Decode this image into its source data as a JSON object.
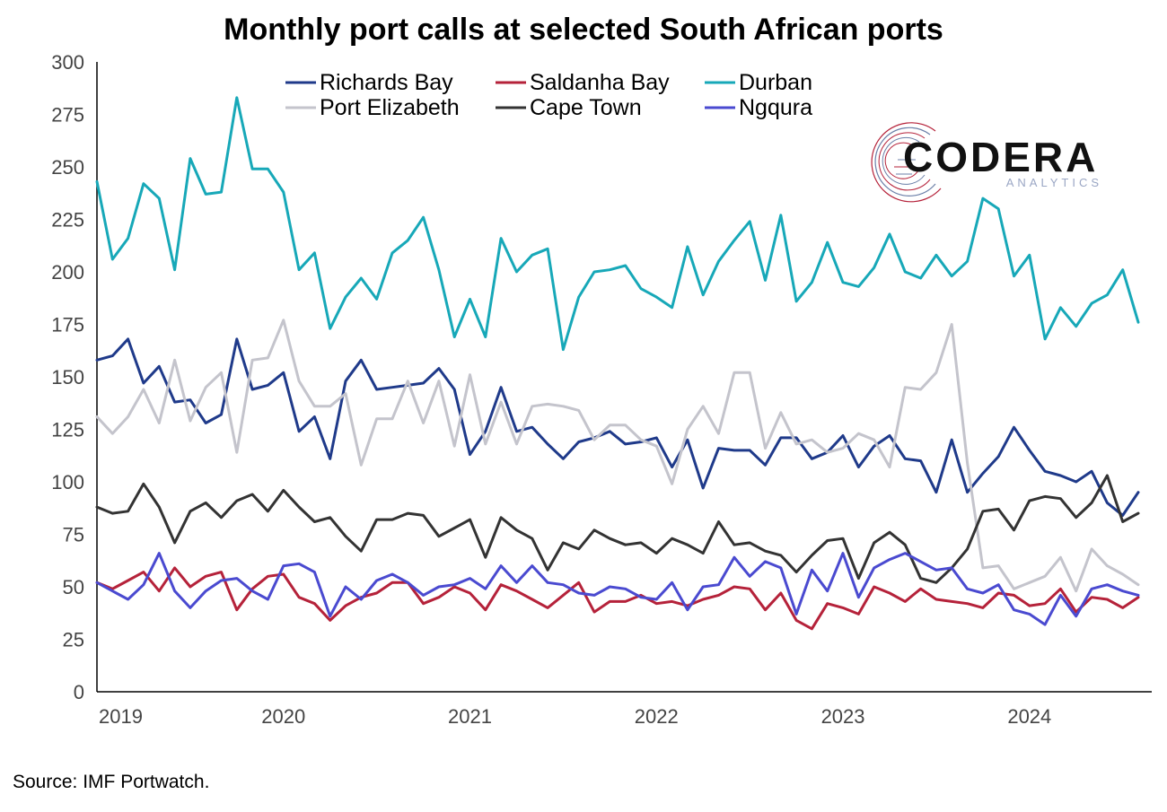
{
  "chart_data": {
    "type": "line",
    "title": "Monthly port calls at selected South African ports",
    "xlabel": "",
    "ylabel": "",
    "ylim": [
      0,
      300
    ],
    "yticks": [
      0,
      25,
      50,
      75,
      100,
      125,
      150,
      175,
      200,
      225,
      250,
      275,
      300
    ],
    "x_start": "2019-01",
    "xticks": [
      "2019",
      "2020",
      "2021",
      "2022",
      "2023",
      "2024"
    ],
    "grid": false,
    "legend_position": "top",
    "source": "Source: IMF Portwatch.",
    "logo": {
      "name": "CODERA",
      "tagline": "ANALYTICS"
    },
    "colors": {
      "Richards Bay": "#1f3a8a",
      "Saldanha Bay": "#b5223a",
      "Durban": "#17a8b8",
      "Port Elizabeth": "#c4c4cc",
      "Cape Town": "#333333",
      "Ngqura": "#4a4ad0"
    },
    "series": [
      {
        "name": "Richards Bay",
        "values": [
          158,
          160,
          168,
          147,
          155,
          138,
          139,
          128,
          132,
          168,
          144,
          146,
          152,
          124,
          131,
          111,
          148,
          158,
          144,
          145,
          146,
          147,
          154,
          144,
          113,
          124,
          145,
          124,
          126,
          118,
          111,
          119,
          121,
          124,
          118,
          119,
          121,
          107,
          120,
          97,
          116,
          115,
          115,
          108,
          121,
          121,
          111,
          114,
          122,
          107,
          117,
          122,
          111,
          110,
          95,
          120,
          95,
          104,
          112,
          126,
          115,
          105,
          103,
          100,
          105,
          90,
          84,
          95
        ]
      },
      {
        "name": "Saldanha Bay",
        "values": [
          52,
          49,
          53,
          57,
          48,
          59,
          50,
          55,
          57,
          39,
          49,
          55,
          56,
          45,
          42,
          34,
          41,
          45,
          47,
          52,
          52,
          42,
          45,
          50,
          47,
          39,
          51,
          48,
          44,
          40,
          46,
          52,
          38,
          43,
          43,
          46,
          42,
          43,
          41,
          44,
          46,
          50,
          49,
          39,
          47,
          34,
          30,
          42,
          40,
          37,
          50,
          47,
          43,
          49,
          44,
          43,
          42,
          40,
          47,
          46,
          41,
          42,
          49,
          38,
          45,
          44,
          40,
          45
        ]
      },
      {
        "name": "Durban",
        "values": [
          243,
          206,
          216,
          242,
          235,
          201,
          254,
          237,
          238,
          283,
          249,
          249,
          238,
          201,
          209,
          173,
          188,
          197,
          187,
          209,
          215,
          226,
          201,
          169,
          187,
          169,
          216,
          200,
          208,
          211,
          163,
          188,
          200,
          201,
          203,
          192,
          188,
          183,
          212,
          189,
          205,
          215,
          224,
          196,
          227,
          186,
          195,
          214,
          195,
          193,
          202,
          218,
          200,
          197,
          208,
          198,
          205,
          235,
          230,
          198,
          208,
          168,
          183,
          174,
          185,
          189,
          201,
          176
        ]
      },
      {
        "name": "Port Elizabeth",
        "values": [
          131,
          123,
          131,
          144,
          128,
          158,
          129,
          145,
          152,
          114,
          158,
          159,
          177,
          148,
          136,
          136,
          142,
          108,
          130,
          130,
          148,
          128,
          148,
          117,
          151,
          118,
          138,
          118,
          136,
          137,
          136,
          134,
          120,
          127,
          127,
          120,
          117,
          99,
          125,
          136,
          123,
          152,
          152,
          116,
          133,
          118,
          120,
          114,
          116,
          123,
          120,
          107,
          145,
          144,
          152,
          175,
          109,
          59,
          60,
          49,
          52,
          55,
          64,
          48,
          68,
          60,
          56,
          51
        ]
      },
      {
        "name": "Cape Town",
        "values": [
          88,
          85,
          86,
          99,
          88,
          71,
          86,
          90,
          83,
          91,
          94,
          86,
          96,
          88,
          81,
          83,
          74,
          67,
          82,
          82,
          85,
          84,
          74,
          78,
          82,
          64,
          83,
          77,
          73,
          58,
          71,
          68,
          77,
          73,
          70,
          71,
          66,
          73,
          70,
          66,
          81,
          70,
          71,
          67,
          65,
          57,
          65,
          72,
          73,
          54,
          71,
          76,
          70,
          54,
          52,
          59,
          68,
          86,
          87,
          77,
          91,
          93,
          92,
          83,
          90,
          103,
          81,
          85
        ]
      },
      {
        "name": "Ngqura",
        "values": [
          52,
          48,
          44,
          51,
          66,
          48,
          40,
          48,
          53,
          54,
          48,
          44,
          60,
          61,
          57,
          36,
          50,
          44,
          53,
          56,
          52,
          46,
          50,
          51,
          54,
          49,
          60,
          52,
          60,
          52,
          51,
          47,
          46,
          50,
          49,
          45,
          44,
          52,
          39,
          50,
          51,
          64,
          55,
          62,
          59,
          37,
          58,
          48,
          66,
          45,
          59,
          63,
          66,
          62,
          58,
          59,
          49,
          47,
          51,
          39,
          37,
          32,
          46,
          36,
          49,
          51,
          48,
          46
        ]
      }
    ]
  }
}
